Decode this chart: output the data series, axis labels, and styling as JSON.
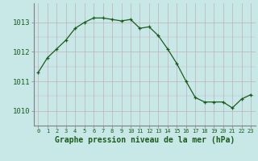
{
  "x": [
    0,
    1,
    2,
    3,
    4,
    5,
    6,
    7,
    8,
    9,
    10,
    11,
    12,
    13,
    14,
    15,
    16,
    17,
    18,
    19,
    20,
    21,
    22,
    23
  ],
  "y": [
    1011.3,
    1011.8,
    1012.1,
    1012.4,
    1012.8,
    1013.0,
    1013.15,
    1013.15,
    1013.1,
    1013.05,
    1013.1,
    1012.8,
    1012.85,
    1012.55,
    1012.1,
    1011.6,
    1011.0,
    1010.45,
    1010.3,
    1010.3,
    1010.3,
    1010.1,
    1010.4,
    1010.55
  ],
  "line_color": "#1a5c1a",
  "marker_color": "#1a5c1a",
  "bg_color": "#c8e8e8",
  "grid_h_color": "#c0b0b8",
  "grid_v_color": "#c0b0b8",
  "xlabel": "Graphe pression niveau de la mer (hPa)",
  "xlabel_color": "#1a5c1a",
  "xlabel_fontsize": 7.0,
  "tick_color": "#1a5c1a",
  "tick_fontsize": 6.5,
  "ylim": [
    1009.5,
    1013.65
  ],
  "yticks": [
    1010,
    1011,
    1012,
    1013
  ],
  "xticks": [
    0,
    1,
    2,
    3,
    4,
    5,
    6,
    7,
    8,
    9,
    10,
    11,
    12,
    13,
    14,
    15,
    16,
    17,
    18,
    19,
    20,
    21,
    22,
    23
  ],
  "spine_color": "#808080"
}
